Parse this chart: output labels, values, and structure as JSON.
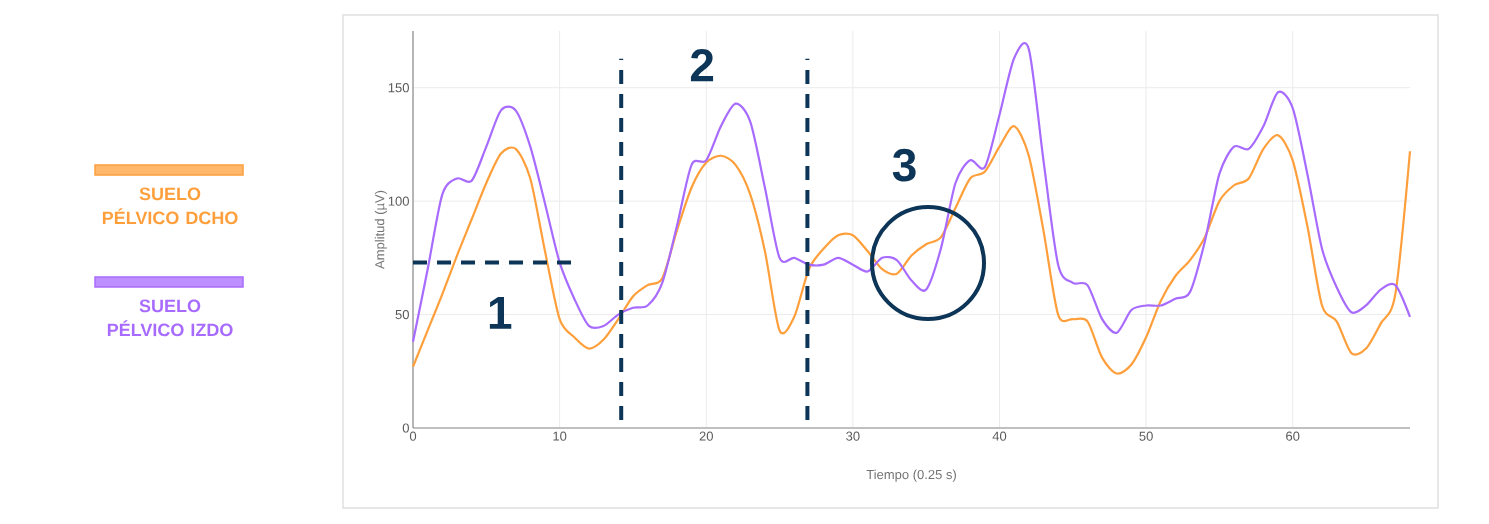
{
  "chart_data": {
    "type": "line",
    "xlabel": "Tiempo (0.25 s)",
    "ylabel": "Amplitud (µV)",
    "x": [
      0,
      1,
      2,
      3,
      4,
      5,
      6,
      7,
      8,
      9,
      10,
      11,
      12,
      13,
      14,
      15,
      16,
      17,
      18,
      19,
      20,
      21,
      22,
      23,
      24,
      25,
      26,
      27,
      28,
      29,
      30,
      31,
      32,
      33,
      34,
      35,
      36,
      37,
      38,
      39,
      40,
      41,
      42,
      43,
      44,
      45,
      46,
      47,
      48,
      49,
      50,
      51,
      52,
      53,
      54,
      55,
      56,
      57,
      58,
      59,
      60,
      61,
      62,
      63,
      64,
      65,
      66,
      67,
      68
    ],
    "series": [
      {
        "name": "SUELO PÉLVICO DCHO",
        "color": "#ff9f3b",
        "values": [
          27,
          43,
          59,
          76,
          92,
          108,
          121,
          123,
          110,
          78,
          48,
          40,
          35,
          39,
          48,
          58,
          63,
          66,
          87,
          106,
          117,
          120,
          116,
          103,
          78,
          43,
          49,
          70,
          79,
          85,
          85,
          78,
          70,
          68,
          76,
          81,
          84,
          97,
          110,
          113,
          124,
          133,
          120,
          87,
          50,
          48,
          47,
          31,
          24,
          28,
          40,
          56,
          67,
          74,
          84,
          100,
          107,
          110,
          123,
          129,
          118,
          89,
          54,
          47,
          33,
          35,
          46,
          59,
          122
        ]
      },
      {
        "name": "SUELO PÉLVICO IZDO",
        "color": "#a86bff",
        "values": [
          38,
          70,
          103,
          110,
          109,
          124,
          140,
          140,
          124,
          99,
          73,
          57,
          45,
          45,
          50,
          53,
          54,
          64,
          89,
          116,
          118,
          133,
          143,
          135,
          106,
          75,
          75,
          72,
          72,
          75,
          72,
          69,
          75,
          74,
          65,
          61,
          79,
          108,
          118,
          115,
          138,
          163,
          167,
          118,
          72,
          64,
          63,
          48,
          42,
          52,
          54,
          54,
          57,
          60,
          82,
          112,
          124,
          123,
          133,
          148,
          141,
          112,
          79,
          62,
          51,
          54,
          61,
          63,
          49
        ]
      }
    ],
    "xlim": [
      0,
      68
    ],
    "ylim": [
      0,
      175
    ],
    "xticks": [
      0,
      10,
      20,
      30,
      40,
      50,
      60
    ],
    "yticks": [
      0,
      50,
      100,
      150
    ],
    "grid": true,
    "legend": "left",
    "ref_lines": [
      {
        "axis": "y",
        "value": 73,
        "color": "#0d3557",
        "line_style": "dashed"
      },
      {
        "axis": "x",
        "value": 14.2,
        "color": "#0d3557",
        "line_style": "dashed"
      },
      {
        "axis": "x",
        "value": 26.9,
        "color": "#0d3557",
        "line_style": "dashed"
      }
    ],
    "annotations": [
      "1",
      "2",
      "3"
    ]
  }
}
